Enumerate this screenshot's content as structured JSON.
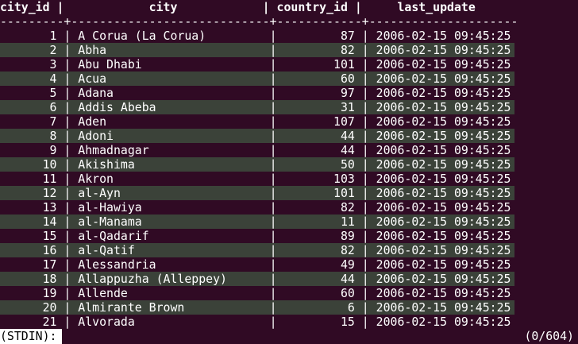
{
  "table": {
    "header": "city_id |            city            | country_id |     last_update",
    "separator": "---------+----------------------------+------------+---------------------",
    "rows": [
      "       1 | A Corua (La Corua)         |         87 | 2006-02-15 09:45:25",
      "       2 | Abha                       |         82 | 2006-02-15 09:45:25",
      "       3 | Abu Dhabi                  |        101 | 2006-02-15 09:45:25",
      "       4 | Acua                       |         60 | 2006-02-15 09:45:25",
      "       5 | Adana                      |         97 | 2006-02-15 09:45:25",
      "       6 | Addis Abeba                |         31 | 2006-02-15 09:45:25",
      "       7 | Aden                       |        107 | 2006-02-15 09:45:25",
      "       8 | Adoni                      |         44 | 2006-02-15 09:45:25",
      "       9 | Ahmadnagar                 |         44 | 2006-02-15 09:45:25",
      "      10 | Akishima                   |         50 | 2006-02-15 09:45:25",
      "      11 | Akron                      |        103 | 2006-02-15 09:45:25",
      "      12 | al-Ayn                     |        101 | 2006-02-15 09:45:25",
      "      13 | al-Hawiya                  |         82 | 2006-02-15 09:45:25",
      "      14 | al-Manama                  |         11 | 2006-02-15 09:45:25",
      "      15 | al-Qadarif                 |         89 | 2006-02-15 09:45:25",
      "      16 | al-Qatif                   |         82 | 2006-02-15 09:45:25",
      "      17 | Alessandria                |         49 | 2006-02-15 09:45:25",
      "      18 | Allappuzha (Alleppey)      |         44 | 2006-02-15 09:45:25",
      "      19 | Allende                    |         60 | 2006-02-15 09:45:25",
      "      20 | Almirante Brown            |          6 | 2006-02-15 09:45:25",
      "      21 | Alvorada                   |         15 | 2006-02-15 09:45:25"
    ]
  },
  "status": {
    "prompt": "(STDIN):",
    "position": "(0/604)"
  },
  "colors": {
    "background": "#300a24",
    "stripe": "#3b4239",
    "text": "#ffffff"
  }
}
